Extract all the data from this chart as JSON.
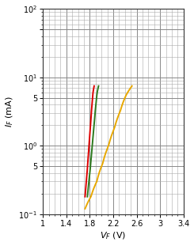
{
  "xlim": [
    1.0,
    3.4
  ],
  "ylim": [
    0.1,
    100
  ],
  "xticks": [
    1.0,
    1.4,
    1.8,
    2.2,
    2.6,
    3.0,
    3.4
  ],
  "xlabel": "V_F (V)",
  "ylabel": "I_F (mA)",
  "curves": [
    {
      "color": "#dd0000",
      "x": [
        1.72,
        1.74,
        1.76,
        1.78,
        1.8,
        1.82,
        1.84,
        1.86,
        1.875
      ],
      "y": [
        0.18,
        0.28,
        0.45,
        0.75,
        1.3,
        2.2,
        3.8,
        6.0,
        7.5
      ]
    },
    {
      "color": "#2d7a1e",
      "x": [
        1.76,
        1.78,
        1.8,
        1.82,
        1.845,
        1.87,
        1.9,
        1.925,
        1.95
      ],
      "y": [
        0.18,
        0.28,
        0.45,
        0.75,
        1.3,
        2.2,
        3.8,
        6.0,
        7.5
      ]
    },
    {
      "color": "#e8a800",
      "x": [
        1.72,
        1.76,
        1.82,
        1.9,
        2.0,
        2.12,
        2.25,
        2.38,
        2.52
      ],
      "y": [
        0.12,
        0.18,
        0.3,
        0.55,
        1.0,
        1.8,
        3.2,
        5.5,
        7.5
      ]
    }
  ],
  "major_grid_color": "#888888",
  "minor_grid_color": "#aaaaaa",
  "major_grid_lw": 0.7,
  "minor_grid_lw": 0.4,
  "bg_color": "#ffffff",
  "figsize": [
    2.45,
    3.11
  ],
  "dpi": 100
}
